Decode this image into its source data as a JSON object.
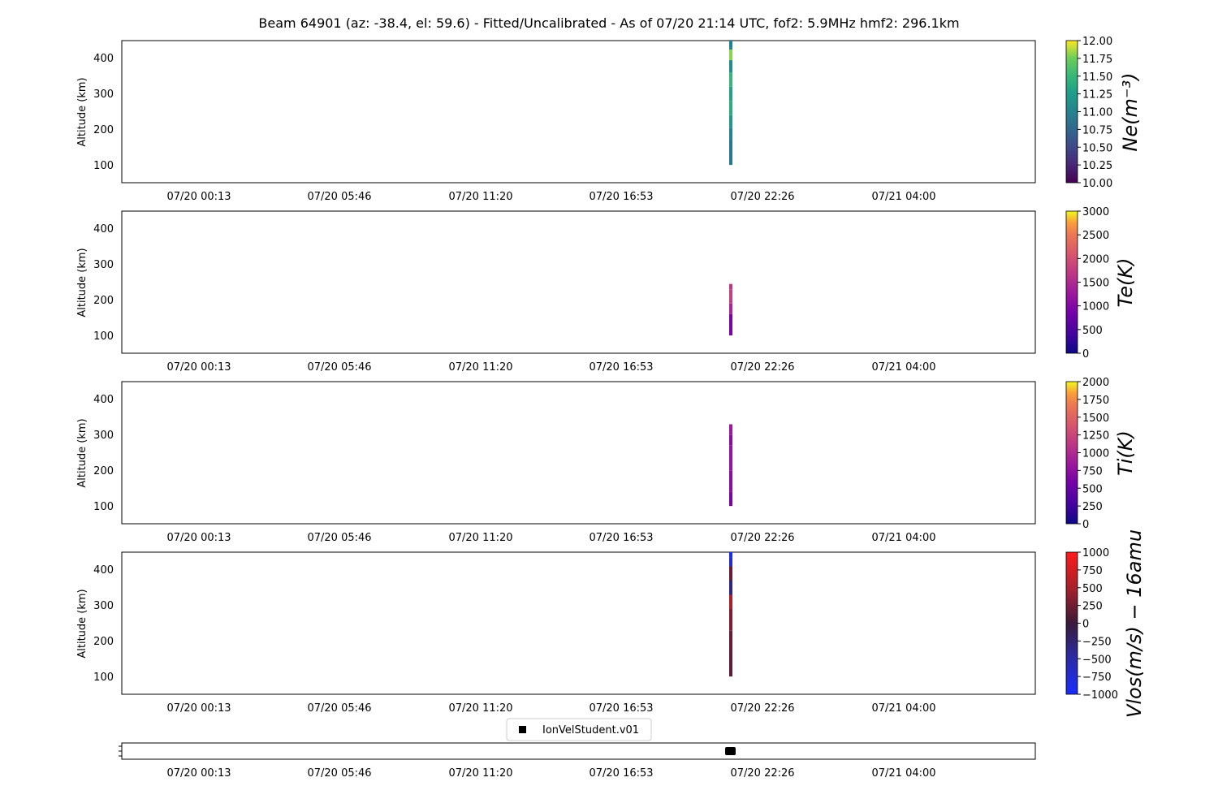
{
  "title": "Beam 64901 (az: -38.4, el: 59.6) - Fitted/Uncalibrated - As of 07/20 21:14 UTC, fof2: 5.9MHz  hmf2: 296.1km",
  "x_ticks": [
    "07/20 00:13",
    "07/20 05:46",
    "07/20 11:20",
    "07/20 16:53",
    "07/20 22:26",
    "07/21 04:00"
  ],
  "y_label": "Altitude (km)",
  "y_ticks": [
    "100",
    "200",
    "300",
    "400"
  ],
  "legend_label": "IonVelStudent.v01",
  "chart_data": [
    {
      "type": "heatmap",
      "ylabel": "Altitude (km)",
      "ylim": [
        50,
        450
      ],
      "colorbar": {
        "label": "Ne(m⁻³)",
        "cmap": "viridis",
        "ticks": [
          "10.00",
          "10.25",
          "10.50",
          "10.75",
          "11.00",
          "11.25",
          "11.50",
          "11.75",
          "12.00"
        ],
        "range": [
          10,
          12
        ]
      },
      "cells": [
        {
          "alt": [
            100,
            170
          ],
          "value": 10.9
        },
        {
          "alt": [
            170,
            205
          ],
          "value": 11.0
        },
        {
          "alt": [
            205,
            240
          ],
          "value": 11.2
        },
        {
          "alt": [
            240,
            280
          ],
          "value": 11.4
        },
        {
          "alt": [
            280,
            320
          ],
          "value": 11.3
        },
        {
          "alt": [
            320,
            360
          ],
          "value": 11.5
        },
        {
          "alt": [
            360,
            395
          ],
          "value": 11.1
        },
        {
          "alt": [
            395,
            425
          ],
          "value": 11.8
        },
        {
          "alt": [
            425,
            450
          ],
          "value": 11.0
        }
      ]
    },
    {
      "type": "heatmap",
      "ylabel": "Altitude (km)",
      "ylim": [
        50,
        450
      ],
      "colorbar": {
        "label": "Te(K)",
        "cmap": "plasma",
        "ticks": [
          "0",
          "500",
          "1000",
          "1500",
          "2000",
          "2500",
          "3000"
        ],
        "range": [
          0,
          3000
        ]
      },
      "cells": [
        {
          "alt": [
            100,
            160
          ],
          "value": 800
        },
        {
          "alt": [
            160,
            190
          ],
          "value": 1300
        },
        {
          "alt": [
            190,
            230
          ],
          "value": 1600
        },
        {
          "alt": [
            230,
            245
          ],
          "value": 1500
        }
      ]
    },
    {
      "type": "heatmap",
      "ylabel": "Altitude (km)",
      "ylim": [
        50,
        450
      ],
      "colorbar": {
        "label": "Ti(K)",
        "cmap": "plasma",
        "ticks": [
          "0",
          "250",
          "500",
          "750",
          "1000",
          "1250",
          "1500",
          "1750",
          "2000"
        ],
        "range": [
          0,
          2000
        ]
      },
      "cells": [
        {
          "alt": [
            100,
            140
          ],
          "value": 550
        },
        {
          "alt": [
            140,
            200
          ],
          "value": 650
        },
        {
          "alt": [
            200,
            270
          ],
          "value": 700
        },
        {
          "alt": [
            270,
            300
          ],
          "value": 620
        },
        {
          "alt": [
            300,
            330
          ],
          "value": 760
        }
      ]
    },
    {
      "type": "heatmap",
      "ylabel": "Altitude (km)",
      "ylim": [
        50,
        450
      ],
      "colorbar": {
        "label": "Vlos(m/s) − 16amu",
        "cmap": "bluered",
        "ticks": [
          "1000",
          "750",
          "500",
          "250",
          "0",
          "−250",
          "−500",
          "−750",
          "−1000"
        ],
        "range": [
          -1000,
          1000
        ]
      },
      "cells": [
        {
          "alt": [
            100,
            170
          ],
          "value": 150
        },
        {
          "alt": [
            170,
            230
          ],
          "value": 200
        },
        {
          "alt": [
            230,
            290
          ],
          "value": 300
        },
        {
          "alt": [
            290,
            330
          ],
          "value": 500
        },
        {
          "alt": [
            330,
            370
          ],
          "value": -300
        },
        {
          "alt": [
            370,
            410
          ],
          "value": 200
        },
        {
          "alt": [
            410,
            435
          ],
          "value": -700
        },
        {
          "alt": [
            435,
            450
          ],
          "value": -900
        }
      ]
    }
  ]
}
